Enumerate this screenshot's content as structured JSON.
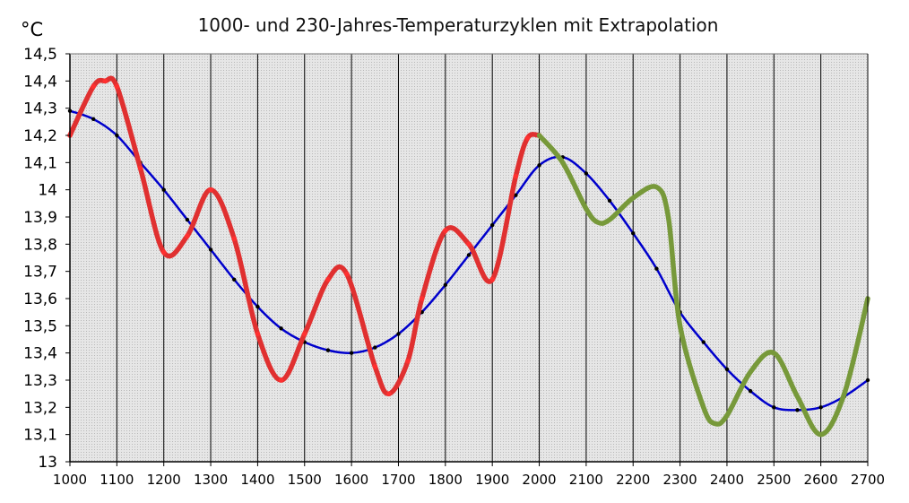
{
  "chart_data": {
    "type": "line",
    "title": "1000- und 230-Jahres-Temperaturzyklen mit Extrapolation",
    "ylabel": "°C",
    "xlabel": "",
    "xlim": [
      1000,
      2700
    ],
    "ylim": [
      13,
      14.5
    ],
    "x_ticks": [
      "1000",
      "1100",
      "1200",
      "1300",
      "1400",
      "1500",
      "1600",
      "1700",
      "1800",
      "1900",
      "2000",
      "2100",
      "2200",
      "2300",
      "2400",
      "2500",
      "2600",
      "2700"
    ],
    "y_ticks": [
      "14,5",
      "14,4",
      "14,3",
      "14,2",
      "14,1",
      "14",
      "13,9",
      "13,8",
      "13,7",
      "13,6",
      "13,5",
      "13,4",
      "13,3",
      "13,2",
      "13,1",
      "13"
    ],
    "grid": "vertical lines every 100; light gray dotted plot background",
    "legend": "none",
    "series": [
      {
        "color": "#0000cc",
        "style": "thin smooth line with small black markers",
        "x": [
          1000,
          1050,
          1100,
          1150,
          1200,
          1250,
          1300,
          1350,
          1400,
          1450,
          1500,
          1550,
          1600,
          1650,
          1700,
          1750,
          1800,
          1850,
          1900,
          1950,
          2000,
          2050,
          2100,
          2150,
          2200,
          2250,
          2300,
          2350,
          2400,
          2450,
          2500,
          2550,
          2600,
          2650,
          2700
        ],
        "y": [
          14.29,
          14.26,
          14.2,
          14.1,
          14.0,
          13.89,
          13.78,
          13.67,
          13.57,
          13.49,
          13.44,
          13.41,
          13.4,
          13.42,
          13.47,
          13.55,
          13.65,
          13.76,
          13.87,
          13.98,
          14.09,
          14.12,
          14.06,
          13.96,
          13.84,
          13.71,
          13.55,
          13.44,
          13.34,
          13.26,
          13.2,
          13.19,
          13.2,
          13.24,
          13.3
        ]
      },
      {
        "color": "#e03030",
        "style": "thick smooth line with small markers",
        "x": [
          1000,
          1050,
          1075,
          1100,
          1150,
          1200,
          1250,
          1300,
          1350,
          1400,
          1450,
          1500,
          1550,
          1590,
          1650,
          1680,
          1720,
          1750,
          1800,
          1850,
          1900,
          1950,
          1975,
          2000
        ],
        "y": [
          14.2,
          14.38,
          14.4,
          14.38,
          14.08,
          13.77,
          13.83,
          14.0,
          13.82,
          13.47,
          13.3,
          13.47,
          13.67,
          13.69,
          13.35,
          13.25,
          13.37,
          13.6,
          13.85,
          13.8,
          13.67,
          14.05,
          14.19,
          14.2
        ]
      },
      {
        "color": "#77993a",
        "style": "thick smooth line (extrapolation)",
        "x": [
          2000,
          2050,
          2100,
          2125,
          2150,
          2200,
          2250,
          2275,
          2300,
          2350,
          2375,
          2400,
          2450,
          2500,
          2550,
          2600,
          2650,
          2700
        ],
        "y": [
          14.2,
          14.1,
          13.93,
          13.88,
          13.89,
          13.97,
          14.01,
          13.9,
          13.5,
          13.2,
          13.14,
          13.17,
          13.33,
          13.4,
          13.24,
          13.1,
          13.25,
          13.6
        ]
      }
    ]
  }
}
